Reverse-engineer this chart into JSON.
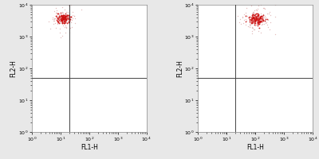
{
  "xlim": [
    1,
    10000
  ],
  "ylim": [
    1,
    10000
  ],
  "xlabel": "FL1-H",
  "ylabel": "FL2-H",
  "gate_x": 20,
  "gate_y": 50,
  "background_color": "#e8e8e8",
  "plot_bg": "#ffffff",
  "left_cluster": {
    "center_x_log": 1.1,
    "center_y_log": 3.58,
    "spread_x_dense": 0.12,
    "spread_y_dense": 0.08,
    "spread_x_sparse": 0.22,
    "spread_y_sparse": 0.2,
    "n_dense": 130,
    "n_sparse": 90
  },
  "right_cluster": {
    "center_x_log": 2.05,
    "center_y_log": 3.55,
    "spread_x_dense": 0.14,
    "spread_y_dense": 0.09,
    "spread_x_sparse": 0.3,
    "spread_y_sparse": 0.22,
    "n_dense": 130,
    "n_sparse": 110
  },
  "dense_color": "#cc1111",
  "sparse_color": "#ddaaaa",
  "marker_size_dense": 1.5,
  "marker_size_sparse": 1.0,
  "gate_color": "#444444",
  "gate_linewidth": 0.7,
  "spine_color": "#888888",
  "spine_linewidth": 0.5,
  "tick_labelsize": 4.5,
  "axis_labelsize": 5.5,
  "figsize": [
    4.0,
    2.0
  ],
  "dpi": 100
}
